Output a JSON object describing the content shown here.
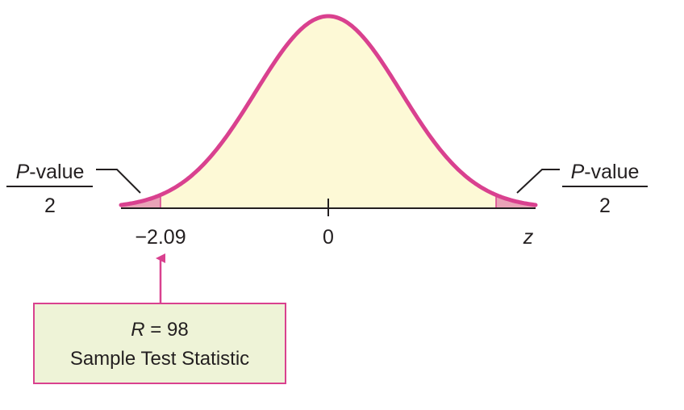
{
  "distribution": {
    "curve_color": "#d9418f",
    "area_fill": "#fdf9d6",
    "tail_fill": "#e9a3b7",
    "axis_color": "#231f20"
  },
  "axis": {
    "tick_left": "−2.09",
    "tick_center": "0",
    "variable": "z"
  },
  "left_label": {
    "numerator_symbol": "P",
    "numerator_rest": "-value",
    "denominator": "2"
  },
  "right_label": {
    "numerator_symbol": "P",
    "numerator_rest": "-value",
    "denominator": "2"
  },
  "statistic_box": {
    "symbol": "R",
    "equation_rest": " = 98",
    "caption": "Sample Test Statistic",
    "fill": "#eef3d7",
    "border": "#d9418f"
  }
}
